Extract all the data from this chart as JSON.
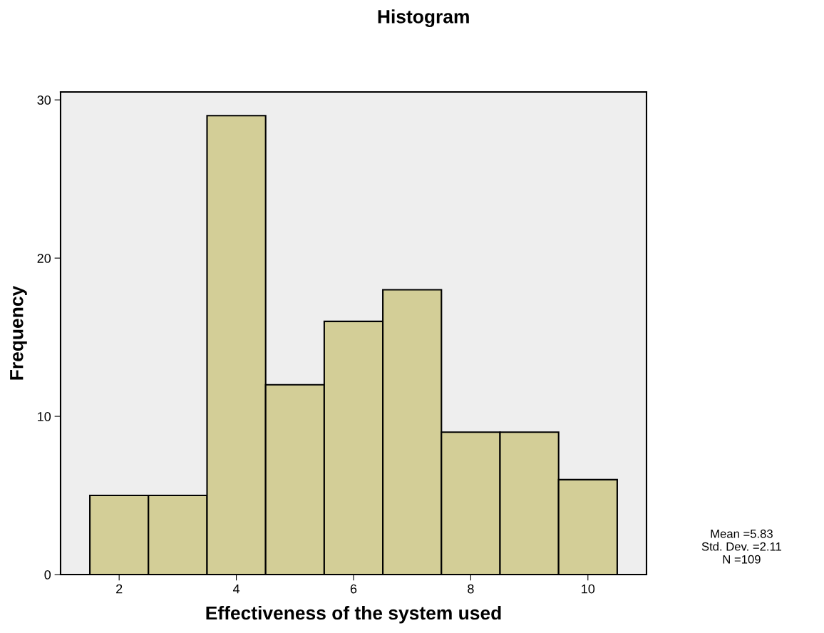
{
  "chart_data": {
    "type": "histogram",
    "title": "Histogram",
    "xlabel": "Effectiveness of the system used",
    "ylabel": "Frequency",
    "bins": [
      1.5,
      2.5,
      3.5,
      4.5,
      5.5,
      6.5,
      7.5,
      8.5,
      9.5,
      10.5
    ],
    "values": [
      5,
      5,
      29,
      12,
      16,
      18,
      9,
      9,
      6
    ],
    "color": "#d3ce97",
    "xlim": [
      1,
      11
    ],
    "xticks": [
      2,
      4,
      6,
      8,
      10
    ],
    "ylim": [
      0,
      30.5
    ],
    "yticks": [
      0,
      10,
      20,
      30
    ],
    "grid": false,
    "annotations": [
      "Mean =5.83\nStd. Dev. =2.11\nN =109"
    ]
  }
}
